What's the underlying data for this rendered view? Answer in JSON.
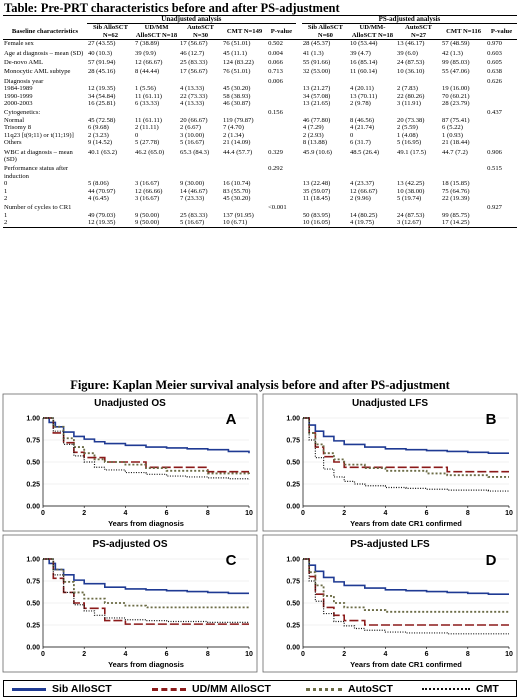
{
  "table": {
    "title": "Table: Pre-PRT characteristics before and after PS-adjustment",
    "group_unadjusted": "Unadjusted analysis",
    "group_adjusted": "PS-adjusted analysis",
    "col_characteristics": "Baseline characteristics",
    "unadj_cols": [
      "Sib AlloSCT N=62",
      "UD/MM AlloSCT N=18",
      "AutoSCT N=30",
      "CMT N=149",
      "P-value"
    ],
    "adj_cols": [
      "Sib AlloSCT N=60",
      "UD/MM-AlloSCT N=18",
      "AutoSCT N=27",
      "CMT N=116",
      "P-value"
    ],
    "rows": [
      {
        "label": "Female sex",
        "u": [
          "27 (43.55)",
          "7 (38.89)",
          "17 (56.67)",
          "76 (51.01)",
          "0.502"
        ],
        "a": [
          "28 (45.37)",
          "10 (53.44)",
          "13 (46.17)",
          "57 (48.59)",
          "0.970"
        ]
      },
      {
        "label": "Age at diagnosis – mean (SD)",
        "u": [
          "40 (10.3)",
          "39 (9.9)",
          "46 (12.7)",
          "45 (11.1)",
          "0.004"
        ],
        "a": [
          "41 (1.3)",
          "39 (4.7)",
          "39 (6.0)",
          "42 (1.3)",
          "0.603"
        ]
      },
      {
        "label": "De-novo AML",
        "u": [
          "57 (91.94)",
          "12 (66.67)",
          "25 (83.33)",
          "124 (83.22)",
          "0.066"
        ],
        "a": [
          "55 (91.66)",
          "16 (85.14)",
          "24 (87.53)",
          "99 (85.03)",
          "0.605"
        ]
      },
      {
        "label": "Monocytic AML subtype",
        "u": [
          "28 (45.16)",
          "8 (44.44)",
          "17 (56.67)",
          "76 (51.01)",
          "0.713"
        ],
        "a": [
          "32 (53.00)",
          "11 (60.14)",
          "10 (36.10)",
          "55 (47.06)",
          "0.638"
        ]
      },
      {
        "label": "Diagnosis year",
        "u": [
          "",
          "",
          "",
          "",
          "0.006"
        ],
        "a": [
          "",
          "",
          "",
          "",
          "0.626"
        ]
      },
      {
        "label": "1984-1989",
        "u": [
          "12 (19.35)",
          "1 (5.56)",
          "4 (13.33)",
          "45 (30.20)",
          ""
        ],
        "a": [
          "13 (21.27)",
          "4 (20.11)",
          "2 (7.83)",
          "19 (16.00)",
          ""
        ]
      },
      {
        "label": "1990-1999",
        "u": [
          "34 (54.84)",
          "11 (61.11)",
          "22 (73.33)",
          "58 (38.93)",
          ""
        ],
        "a": [
          "34 (57.08)",
          "13 (70.11)",
          "22 (80.26)",
          "70 (60.21)",
          ""
        ]
      },
      {
        "label": "2000-2003",
        "u": [
          "16 (25.81)",
          "6 (33.33)",
          "4 (13.33)",
          "46 (30.87)",
          ""
        ],
        "a": [
          "13 (21.65)",
          "2 (9.78)",
          "3 (11.91)",
          "28 (23.79)",
          ""
        ]
      },
      {
        "label": "Cytogenetics:",
        "u": [
          "",
          "",
          "",
          "",
          "0.156"
        ],
        "a": [
          "",
          "",
          "",
          "",
          "0.437"
        ]
      },
      {
        "label": "Normal",
        "u": [
          "45 (72.58)",
          "11 (61.11)",
          "20 (66.67)",
          "119 (79.87)",
          ""
        ],
        "a": [
          "46 (77.80)",
          "8 (46.56)",
          "20 (73.38)",
          "87 (75.41)",
          ""
        ]
      },
      {
        "label": "Trisomy 8",
        "u": [
          "6 (9.68)",
          "2 (11.11)",
          "2 (6.67)",
          "7 (4.70)",
          ""
        ],
        "a": [
          "4 (7.29)",
          "4 (21.74)",
          "2 (5.59)",
          "6 (5.22)",
          ""
        ]
      },
      {
        "label": "11q23 [t(9;11) or t(11;19)]",
        "u": [
          "2 (3.23)",
          "0",
          "3 (10.00)",
          "2 (1.34)",
          ""
        ],
        "a": [
          "2 (2.93)",
          "0",
          "1 (4.08)",
          "1 (0.93)",
          ""
        ]
      },
      {
        "label": "Others",
        "u": [
          "9 (14.52)",
          "5 (27.78)",
          "5 (16.67)",
          "21 (14.09)",
          ""
        ],
        "a": [
          "8 (13.88)",
          "6 (31.7)",
          "5 (16.95)",
          "21 (18.44)",
          ""
        ]
      },
      {
        "label": "WBC at diagnosis – mean (SD)",
        "u": [
          "40.1 (63.2)",
          "46.2 (65.0)",
          "65.3 (84.3)",
          "44.4 (57.7)",
          "0.329"
        ],
        "a": [
          "45.9 (10.6)",
          "48.5 (26.4)",
          "49.1 (17.5)",
          "44.7 (7.2)",
          "0.906"
        ]
      },
      {
        "label": "Performance status after induction",
        "u": [
          "",
          "",
          "",
          "",
          "0.292"
        ],
        "a": [
          "",
          "",
          "",
          "",
          "0.515"
        ]
      },
      {
        "label": "0",
        "u": [
          "5 (8.06)",
          "3 (16.67)",
          "9 (30.00)",
          "16 (10.74)",
          ""
        ],
        "a": [
          "13 (22.48)",
          "4 (23.37)",
          "13 (42.25)",
          "18 (15.85)",
          ""
        ]
      },
      {
        "label": "1",
        "u": [
          "44 (70.97)",
          "12 (66.66)",
          "14 (46.67)",
          "83 (55.70)",
          ""
        ],
        "a": [
          "35 (59.07)",
          "12 (66.67)",
          "10 (38.00)",
          "75 (64.76)",
          ""
        ]
      },
      {
        "label": "2",
        "u": [
          "4 (6.45)",
          "3 (16.67)",
          "7 (23.33)",
          "45 (30.20)",
          ""
        ],
        "a": [
          "11 (18.45)",
          "2 (9.96)",
          "5 (19.74)",
          "22 (19.39)",
          ""
        ]
      },
      {
        "label": "Number of cycles to CR1",
        "u": [
          "",
          "",
          "",
          "",
          "<0.001"
        ],
        "a": [
          "",
          "",
          "",
          "",
          "0.927"
        ]
      },
      {
        "label": "1",
        "u": [
          "49 (79.03)",
          "9 (50.00)",
          "25 (83.33)",
          "137 (91.95)",
          ""
        ],
        "a": [
          "50 (83.95)",
          "14 (80.25)",
          "24 (87.53)",
          "99 (85.75)",
          ""
        ]
      },
      {
        "label": "2",
        "u": [
          "12 (19.35)",
          "9 (50.00)",
          "5 (16.67)",
          "10 (6.71)",
          ""
        ],
        "a": [
          "10 (16.05)",
          "4 (19.75)",
          "3 (12.67)",
          "17 (14.25)",
          ""
        ]
      }
    ]
  },
  "figure": {
    "title": "Figure: Kaplan Meier survival analysis before and after PS-adjustment",
    "legend": [
      "Sib AlloSCT",
      "UD/MM AlloSCT",
      "AutoSCT",
      "CMT"
    ],
    "series_colors": [
      "#1f3a93",
      "#8b1a1a",
      "#6b6b45",
      "#111111"
    ]
  },
  "chart_data": [
    {
      "type": "line",
      "title": "Unadjusted OS",
      "panel": "A",
      "xlabel": "Years from diagnosis",
      "xlim": [
        0,
        10
      ],
      "ylim": [
        0,
        1
      ],
      "xticks": [
        0,
        2,
        4,
        6,
        8,
        10
      ],
      "yticks": [
        0.0,
        0.25,
        0.5,
        0.75,
        1.0
      ],
      "series": [
        {
          "name": "Sib AlloSCT",
          "x": [
            0,
            0.3,
            0.6,
            1,
            1.5,
            2,
            2.5,
            3,
            4,
            5,
            6,
            7,
            8,
            9,
            10
          ],
          "y": [
            1,
            0.95,
            0.9,
            0.84,
            0.79,
            0.76,
            0.73,
            0.71,
            0.69,
            0.67,
            0.66,
            0.65,
            0.64,
            0.62,
            0.6
          ]
        },
        {
          "name": "UD/MM AlloSCT",
          "x": [
            0,
            0.5,
            1,
            1.5,
            2,
            3,
            4,
            5,
            6,
            7,
            8,
            9,
            10
          ],
          "y": [
            1,
            0.83,
            0.72,
            0.61,
            0.55,
            0.5,
            0.5,
            0.44,
            0.44,
            0.44,
            0.39,
            0.39,
            0.39
          ]
        },
        {
          "name": "AutoSCT",
          "x": [
            0,
            0.5,
            1,
            1.5,
            2,
            2.5,
            3,
            4,
            5,
            6,
            8,
            10
          ],
          "y": [
            1,
            0.9,
            0.77,
            0.67,
            0.6,
            0.53,
            0.5,
            0.47,
            0.43,
            0.4,
            0.37,
            0.35
          ]
        },
        {
          "name": "CMT",
          "x": [
            0,
            0.5,
            1,
            1.5,
            2,
            2.5,
            3,
            4,
            5,
            6,
            7,
            8,
            9,
            10
          ],
          "y": [
            1,
            0.85,
            0.7,
            0.57,
            0.5,
            0.44,
            0.41,
            0.38,
            0.36,
            0.34,
            0.33,
            0.32,
            0.31,
            0.3
          ]
        }
      ]
    },
    {
      "type": "line",
      "title": "Unadjusted LFS",
      "panel": "B",
      "xlabel": "Years from date CR1 confirmed",
      "xlim": [
        0,
        10
      ],
      "ylim": [
        0,
        1
      ],
      "xticks": [
        0,
        2,
        4,
        6,
        8,
        10
      ],
      "yticks": [
        0.0,
        0.25,
        0.5,
        0.75,
        1.0
      ],
      "series": [
        {
          "name": "Sib AlloSCT",
          "x": [
            0,
            0.3,
            0.6,
            1,
            1.5,
            2,
            3,
            4,
            5,
            6,
            7,
            8,
            9,
            10
          ],
          "y": [
            1,
            0.92,
            0.85,
            0.79,
            0.74,
            0.7,
            0.67,
            0.65,
            0.64,
            0.63,
            0.62,
            0.61,
            0.6,
            0.6
          ]
        },
        {
          "name": "UD/MM AlloSCT",
          "x": [
            0,
            0.3,
            0.6,
            1,
            1.5,
            2,
            3,
            4,
            5,
            6,
            7,
            8,
            9,
            10
          ],
          "y": [
            1,
            0.83,
            0.67,
            0.56,
            0.5,
            0.44,
            0.44,
            0.44,
            0.44,
            0.44,
            0.39,
            0.39,
            0.39,
            0.39
          ]
        },
        {
          "name": "AutoSCT",
          "x": [
            0,
            0.3,
            0.6,
            1,
            1.5,
            2,
            3,
            4,
            5,
            6,
            7,
            8,
            9,
            10
          ],
          "y": [
            1,
            0.83,
            0.7,
            0.6,
            0.53,
            0.47,
            0.43,
            0.4,
            0.4,
            0.37,
            0.35,
            0.35,
            0.33,
            0.33
          ]
        },
        {
          "name": "CMT",
          "x": [
            0,
            0.3,
            0.6,
            1,
            1.5,
            2,
            2.5,
            3,
            4,
            5,
            6,
            7,
            8,
            9,
            10
          ],
          "y": [
            1,
            0.75,
            0.55,
            0.42,
            0.33,
            0.28,
            0.25,
            0.23,
            0.21,
            0.2,
            0.19,
            0.18,
            0.18,
            0.17,
            0.17
          ]
        }
      ]
    },
    {
      "type": "line",
      "title": "PS-adjusted OS",
      "panel": "C",
      "xlabel": "Years from diagnosis",
      "xlim": [
        0,
        10
      ],
      "ylim": [
        0,
        1
      ],
      "xticks": [
        0,
        2,
        4,
        6,
        8,
        10
      ],
      "yticks": [
        0.0,
        0.25,
        0.5,
        0.75,
        1.0
      ],
      "series": [
        {
          "name": "Sib AlloSCT",
          "x": [
            0,
            0.3,
            0.6,
            1,
            1.5,
            2,
            3,
            4,
            5,
            6,
            7,
            8,
            9,
            10
          ],
          "y": [
            1,
            0.95,
            0.88,
            0.82,
            0.76,
            0.72,
            0.68,
            0.66,
            0.65,
            0.64,
            0.63,
            0.62,
            0.61,
            0.61
          ]
        },
        {
          "name": "UD/MM AlloSCT",
          "x": [
            0,
            0.5,
            1,
            1.5,
            2,
            3,
            4,
            5,
            6,
            7,
            8,
            9,
            10
          ],
          "y": [
            1,
            0.78,
            0.62,
            0.5,
            0.44,
            0.3,
            0.26,
            0.26,
            0.26,
            0.26,
            0.26,
            0.26,
            0.26
          ]
        },
        {
          "name": "AutoSCT",
          "x": [
            0,
            0.5,
            1,
            1.5,
            2,
            3,
            4,
            5,
            6,
            7,
            8,
            9,
            10
          ],
          "y": [
            1,
            0.88,
            0.74,
            0.62,
            0.55,
            0.5,
            0.47,
            0.45,
            0.45,
            0.45,
            0.45,
            0.45,
            0.45
          ]
        },
        {
          "name": "CMT",
          "x": [
            0,
            0.5,
            1,
            1.5,
            2,
            2.5,
            3,
            4,
            5,
            6,
            7,
            8,
            9,
            10
          ],
          "y": [
            1,
            0.82,
            0.62,
            0.48,
            0.41,
            0.36,
            0.33,
            0.31,
            0.3,
            0.29,
            0.29,
            0.28,
            0.28,
            0.28
          ]
        }
      ]
    },
    {
      "type": "line",
      "title": "PS-adjusted LFS",
      "panel": "D",
      "xlabel": "Years from date CR1 confirmed",
      "xlim": [
        0,
        10
      ],
      "ylim": [
        0,
        1
      ],
      "xticks": [
        0,
        2,
        4,
        6,
        8,
        10
      ],
      "yticks": [
        0.0,
        0.25,
        0.5,
        0.75,
        1.0
      ],
      "series": [
        {
          "name": "Sib AlloSCT",
          "x": [
            0,
            0.3,
            0.6,
            1,
            1.5,
            2,
            3,
            4,
            5,
            6,
            7,
            8,
            9,
            10
          ],
          "y": [
            1,
            0.93,
            0.86,
            0.79,
            0.74,
            0.7,
            0.67,
            0.65,
            0.64,
            0.63,
            0.62,
            0.61,
            0.6,
            0.6
          ]
        },
        {
          "name": "UD/MM AlloSCT",
          "x": [
            0,
            0.3,
            0.6,
            1,
            1.5,
            2,
            3,
            4,
            5,
            6,
            7,
            8,
            9,
            10
          ],
          "y": [
            1,
            0.8,
            0.6,
            0.45,
            0.36,
            0.3,
            0.25,
            0.25,
            0.25,
            0.25,
            0.25,
            0.25,
            0.25,
            0.25
          ]
        },
        {
          "name": "AutoSCT",
          "x": [
            0,
            0.3,
            0.6,
            1,
            1.5,
            2,
            3,
            4,
            5,
            6,
            7,
            8,
            9,
            10
          ],
          "y": [
            1,
            0.85,
            0.7,
            0.58,
            0.5,
            0.45,
            0.42,
            0.4,
            0.4,
            0.4,
            0.4,
            0.4,
            0.4,
            0.4
          ]
        },
        {
          "name": "CMT",
          "x": [
            0,
            0.3,
            0.6,
            1,
            1.5,
            2,
            2.5,
            3,
            4,
            5,
            6,
            7,
            8,
            9,
            10
          ],
          "y": [
            1,
            0.75,
            0.52,
            0.38,
            0.29,
            0.24,
            0.21,
            0.19,
            0.17,
            0.16,
            0.16,
            0.15,
            0.15,
            0.15,
            0.15
          ]
        }
      ]
    }
  ]
}
